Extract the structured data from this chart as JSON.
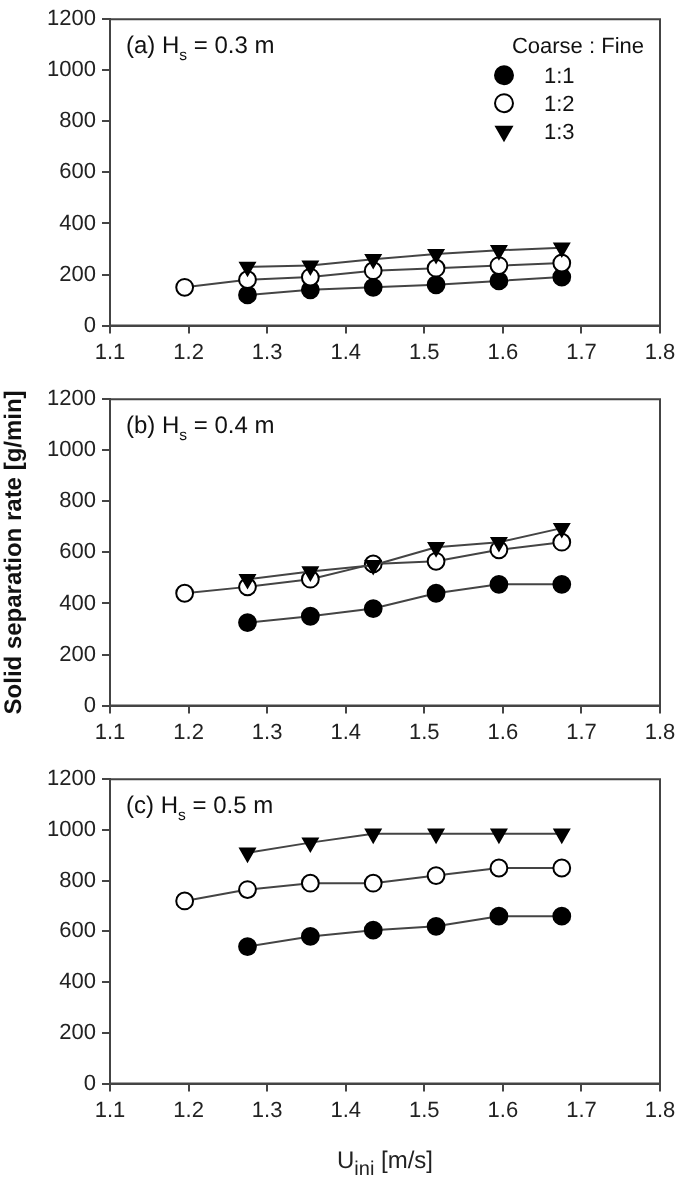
{
  "chart_data": [
    {
      "type": "line",
      "annotations": [
        "(a) H$_{s}$ = 0.3 m"
      ],
      "legend": "top right",
      "legend_title": "Coarse : Fine",
      "xlim": [
        1.1,
        1.8
      ],
      "xticks": [
        1.1,
        1.2,
        1.3,
        1.4,
        1.5,
        1.6,
        1.7,
        1.8
      ],
      "ylim": [
        0,
        1200
      ],
      "yticks": [
        0,
        200,
        400,
        600,
        800,
        1000,
        1200
      ],
      "grid": false,
      "series": [
        {
          "name": "1:1",
          "color": "#000000",
          "marker": "circle",
          "x": [
            1.275,
            1.355,
            1.435,
            1.515,
            1.595,
            1.675
          ],
          "values": [
            120,
            140,
            150,
            160,
            175,
            190
          ]
        },
        {
          "name": "1:2",
          "color": "#ffffff",
          "marker": "circle",
          "x": [
            1.195,
            1.275,
            1.355,
            1.435,
            1.515,
            1.595,
            1.675
          ],
          "values": [
            150,
            180,
            190,
            215,
            225,
            235,
            245
          ]
        },
        {
          "name": "1:3",
          "color": "#000000",
          "marker": "triangle",
          "x": [
            1.275,
            1.355,
            1.435,
            1.515,
            1.595,
            1.675
          ],
          "values": [
            230,
            235,
            260,
            280,
            295,
            305
          ]
        }
      ]
    },
    {
      "type": "line",
      "annotations": [
        "(b) H$_{s}$ = 0.4 m"
      ],
      "ylabel": "Solid separation rate [g/min]",
      "xlim": [
        1.1,
        1.8
      ],
      "xticks": [
        1.1,
        1.2,
        1.3,
        1.4,
        1.5,
        1.6,
        1.7,
        1.8
      ],
      "ylim": [
        0,
        1200
      ],
      "yticks": [
        0,
        200,
        400,
        600,
        800,
        1000,
        1200
      ],
      "grid": false,
      "series": [
        {
          "color": "#000000",
          "marker": "circle",
          "x": [
            1.275,
            1.355,
            1.435,
            1.515,
            1.595,
            1.675
          ],
          "values": [
            325,
            350,
            380,
            440,
            475,
            475
          ]
        },
        {
          "color": "#ffffff",
          "marker": "circle",
          "x": [
            1.195,
            1.275,
            1.355,
            1.435,
            1.515,
            1.595,
            1.675
          ],
          "values": [
            440,
            465,
            495,
            555,
            565,
            610,
            640
          ]
        },
        {
          "color": "#000000",
          "marker": "triangle",
          "x": [
            1.275,
            1.355,
            1.435,
            1.515,
            1.595,
            1.675
          ],
          "values": [
            495,
            525,
            550,
            620,
            640,
            695
          ]
        }
      ]
    },
    {
      "type": "line",
      "annotations": [
        "(c) H$_{s}$ = 0.5 m"
      ],
      "xlabel": "U$_{ini}$ [m/s]",
      "xlim": [
        1.1,
        1.8
      ],
      "xticks": [
        1.1,
        1.2,
        1.3,
        1.4,
        1.5,
        1.6,
        1.7,
        1.8
      ],
      "ylim": [
        0,
        1200
      ],
      "yticks": [
        0,
        200,
        400,
        600,
        800,
        1000,
        1200
      ],
      "grid": false,
      "series": [
        {
          "color": "#000000",
          "marker": "circle",
          "x": [
            1.275,
            1.355,
            1.435,
            1.515,
            1.595,
            1.675
          ],
          "values": [
            540,
            580,
            605,
            620,
            660,
            660
          ]
        },
        {
          "color": "#ffffff",
          "marker": "circle",
          "x": [
            1.195,
            1.275,
            1.355,
            1.435,
            1.515,
            1.595,
            1.675
          ],
          "values": [
            720,
            765,
            790,
            790,
            820,
            850,
            850
          ]
        },
        {
          "color": "#000000",
          "marker": "triangle",
          "x": [
            1.275,
            1.355,
            1.435,
            1.515,
            1.595,
            1.675
          ],
          "values": [
            910,
            950,
            985,
            985,
            985,
            985
          ]
        }
      ]
    }
  ]
}
